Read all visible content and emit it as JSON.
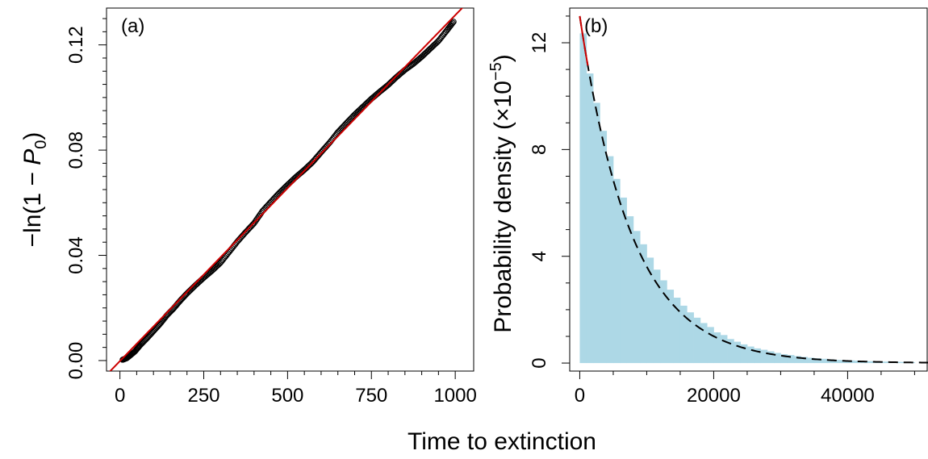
{
  "shared_xlabel": "Time to extinction",
  "colors": {
    "fit_line": "#cc0000",
    "points": "#000000",
    "bars": "#add8e6",
    "curve": "#000000"
  },
  "chart_data": [
    {
      "type": "scatter",
      "panel_label": "(a)",
      "ylabel": "−ln(1 − P₀)",
      "xlim": [
        -40,
        1055
      ],
      "ylim": [
        -0.004,
        0.134
      ],
      "xticks": [
        0,
        250,
        500,
        750,
        1000
      ],
      "xtick_labels": [
        "0",
        "250",
        "500",
        "750",
        "1000"
      ],
      "yticks": [
        0.0,
        0.04,
        0.08,
        0.12
      ],
      "ytick_labels": [
        "0.00",
        "0.04",
        "0.08",
        "0.12"
      ],
      "fit_line": {
        "slope": 0.0001315,
        "intercept": -0.0002
      },
      "points": [
        [
          8,
          0.0003
        ],
        [
          20,
          0.0009
        ],
        [
          30,
          0.0019
        ],
        [
          45,
          0.0035
        ],
        [
          60,
          0.0058
        ],
        [
          80,
          0.0084
        ],
        [
          100,
          0.0112
        ],
        [
          120,
          0.014
        ],
        [
          140,
          0.0172
        ],
        [
          160,
          0.0198
        ],
        [
          180,
          0.0228
        ],
        [
          200,
          0.0255
        ],
        [
          225,
          0.0286
        ],
        [
          250,
          0.0315
        ],
        [
          275,
          0.0342
        ],
        [
          300,
          0.0372
        ],
        [
          325,
          0.0412
        ],
        [
          350,
          0.0452
        ],
        [
          375,
          0.0488
        ],
        [
          400,
          0.0522
        ],
        [
          425,
          0.0568
        ],
        [
          450,
          0.0603
        ],
        [
          475,
          0.0637
        ],
        [
          500,
          0.0668
        ],
        [
          525,
          0.0698
        ],
        [
          550,
          0.0725
        ],
        [
          575,
          0.0755
        ],
        [
          600,
          0.0792
        ],
        [
          625,
          0.0828
        ],
        [
          650,
          0.0868
        ],
        [
          675,
          0.0902
        ],
        [
          700,
          0.0935
        ],
        [
          725,
          0.0965
        ],
        [
          750,
          0.0995
        ],
        [
          775,
          0.1022
        ],
        [
          800,
          0.1048
        ],
        [
          825,
          0.1078
        ],
        [
          850,
          0.1105
        ],
        [
          875,
          0.1128
        ],
        [
          900,
          0.1155
        ],
        [
          925,
          0.1185
        ],
        [
          950,
          0.1215
        ],
        [
          975,
          0.1255
        ],
        [
          995,
          0.1288
        ]
      ]
    },
    {
      "type": "bar",
      "panel_label": "(b)",
      "ylabel": "Probability density  (×10",
      "ylabel_exp": "−5",
      "ylabel_close": ")",
      "xlim": [
        -1500,
        52000
      ],
      "ylim": [
        -0.3,
        13.3
      ],
      "xticks": [
        0,
        20000,
        40000
      ],
      "xtick_labels": [
        "0",
        "20000",
        "40000"
      ],
      "yticks": [
        0,
        4,
        8,
        12
      ],
      "ytick_labels": [
        "0",
        "4",
        "8",
        "12"
      ],
      "bin_width": 1000,
      "values": [
        12.35,
        10.85,
        9.75,
        8.7,
        7.75,
        6.9,
        6.2,
        5.5,
        4.95,
        4.45,
        3.95,
        3.5,
        3.1,
        2.75,
        2.45,
        2.15,
        1.9,
        1.7,
        1.5,
        1.35,
        1.15,
        1.05,
        0.9,
        0.8,
        0.7,
        0.62,
        0.55,
        0.5,
        0.44,
        0.38,
        0.33,
        0.3,
        0.26,
        0.23,
        0.2,
        0.18,
        0.16,
        0.14,
        0.12,
        0.11,
        0.1,
        0.09,
        0.08,
        0.07,
        0.06,
        0.055,
        0.05,
        0.045,
        0.04,
        0.035
      ],
      "density_curve": {
        "amplitude": 13.0,
        "rate": 0.000128
      },
      "initial_segment": {
        "x": [
          0,
          1200
        ],
        "amplitude": 13.0,
        "rate": 0.000128
      }
    }
  ]
}
